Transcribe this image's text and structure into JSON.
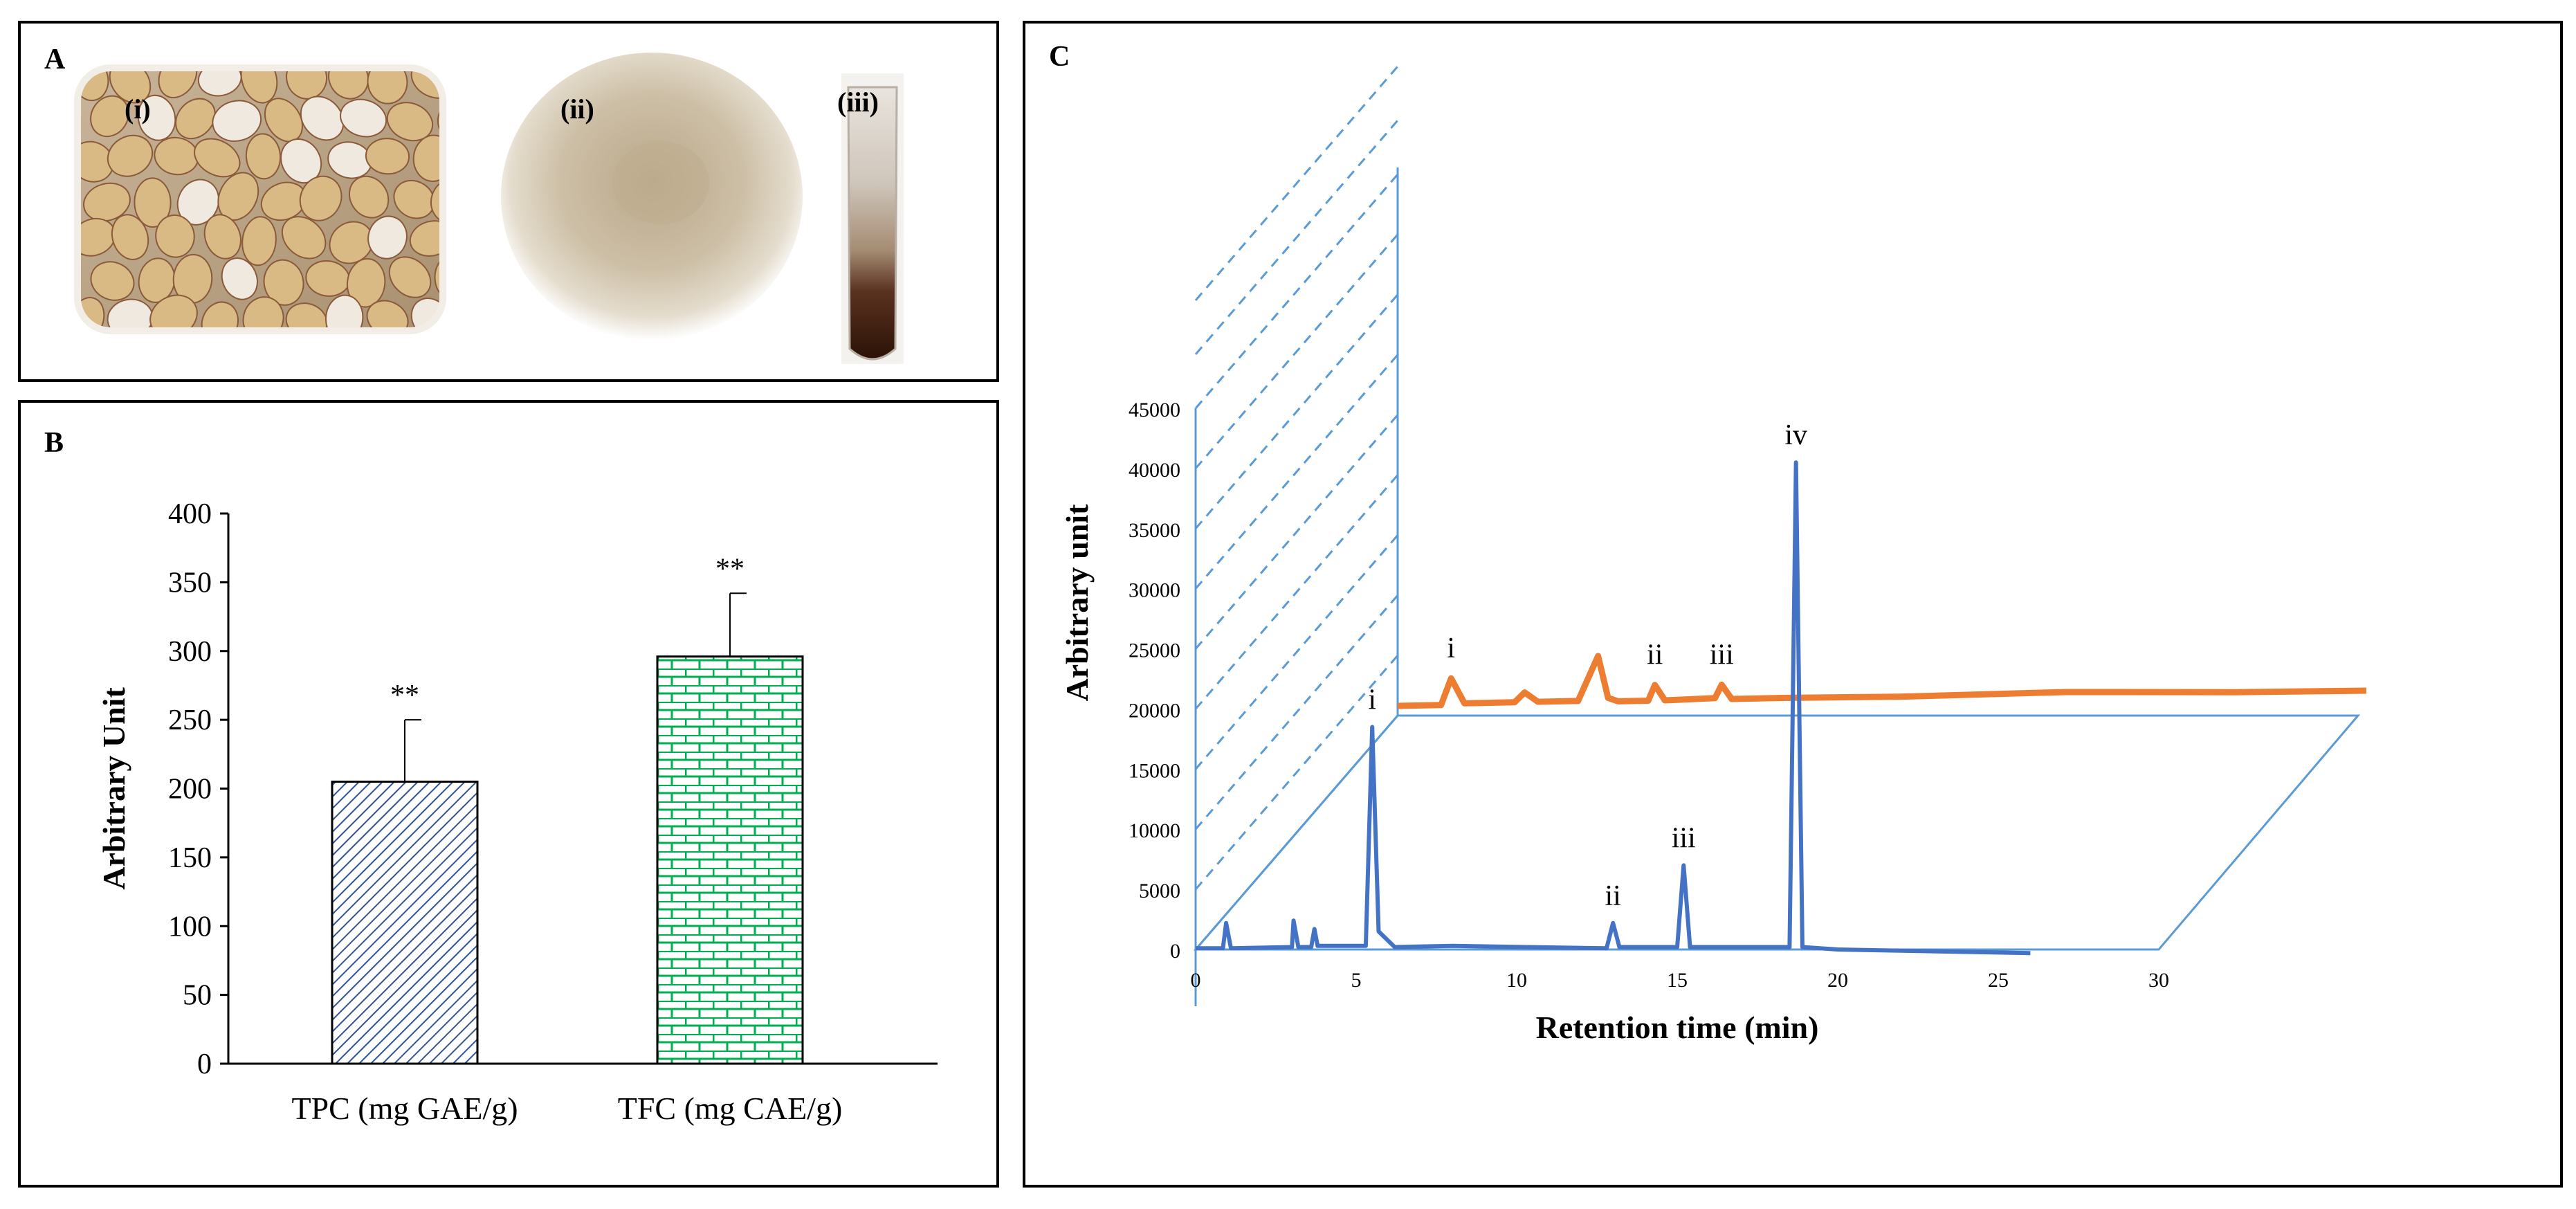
{
  "panelA": {
    "letter": "A",
    "photos": [
      {
        "label": "(i)"
      },
      {
        "label": "(ii)"
      },
      {
        "label": "(iii)"
      }
    ]
  },
  "panelB": {
    "letter": "B",
    "chart_data": {
      "type": "bar",
      "categories": [
        "TPC (mg GAE/g)",
        "TFC (mg CAE/g)"
      ],
      "values": [
        205,
        296
      ],
      "errors": [
        45,
        46
      ],
      "annotations": [
        "**",
        "**"
      ],
      "ylabel": "Arbitrary Unit",
      "ylim": [
        0,
        400
      ],
      "yticks": [
        0,
        50,
        100,
        150,
        200,
        250,
        300,
        350,
        400
      ],
      "colors": {
        "bar1": "#2f5597",
        "bar2": "#00b050"
      },
      "patterns": [
        "diagonal-hatch",
        "brick"
      ]
    }
  },
  "panelC": {
    "letter": "C",
    "chart_data": {
      "type": "line",
      "xlabel": "Retention time (min)",
      "ylabel": "Arbitrary unit",
      "xlim": [
        0,
        30
      ],
      "ylim": [
        0,
        45000
      ],
      "xticks": [
        0,
        5,
        10,
        15,
        20,
        25,
        30
      ],
      "yticks": [
        0,
        5000,
        10000,
        15000,
        20000,
        25000,
        30000,
        35000,
        40000,
        45000
      ],
      "series": [
        {
          "color": "#4472c4",
          "x": [
            0,
            0.85,
            0.95,
            1.1,
            3,
            3.05,
            3.2,
            3.6,
            3.7,
            3.8,
            5.3,
            5.5,
            5.7,
            6.2,
            8,
            12.8,
            13.0,
            13.2,
            15.0,
            15.2,
            15.4,
            18.5,
            18.7,
            18.9,
            20,
            26
          ],
          "y": [
            100,
            100,
            2200,
            100,
            200,
            2400,
            200,
            200,
            1700,
            300,
            300,
            18500,
            1500,
            200,
            300,
            100,
            2200,
            200,
            200,
            7000,
            200,
            200,
            40500,
            200,
            0,
            -300
          ],
          "peak_labels": [
            {
              "label": "i",
              "x": 5.5,
              "y": 18500
            },
            {
              "label": "ii",
              "x": 13.0,
              "y": 2200
            },
            {
              "label": "iii",
              "x": 15.2,
              "y": 7000
            },
            {
              "label": "iv",
              "x": 18.7,
              "y": 40500
            }
          ]
        },
        {
          "color": "#ed7d31",
          "x": [
            0,
            1.3,
            1.6,
            2.0,
            3.5,
            3.8,
            4.2,
            5.4,
            6.0,
            6.3,
            6.6,
            7.5,
            7.7,
            8.0,
            9.5,
            9.7,
            10.0,
            11.5,
            15,
            20,
            25,
            29
          ],
          "y": [
            0,
            0,
            2200,
            100,
            100,
            900,
            100,
            100,
            3800,
            300,
            0,
            0,
            1300,
            0,
            100,
            1200,
            0,
            0,
            -100,
            0,
            -300,
            -400
          ],
          "peak_labels": [
            {
              "label": "i",
              "x": 1.6,
              "y": 2200
            },
            {
              "label": "ii",
              "x": 7.7,
              "y": 1300
            },
            {
              "label": "iii",
              "x": 9.7,
              "y": 1200
            }
          ]
        }
      ]
    }
  }
}
